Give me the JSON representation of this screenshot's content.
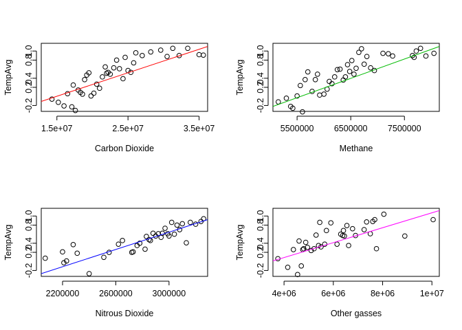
{
  "chart_data": [
    {
      "type": "scatter",
      "xlabel": "Carbon Dioxide",
      "ylabel": "TempAvg",
      "xlim": [
        12800000,
        36200000
      ],
      "ylim": [
        -0.33,
        1.17
      ],
      "xticks": [
        15000000,
        25000000,
        35000000
      ],
      "xtick_labels": [
        "1.5e+07",
        "2.5e+07",
        "3.5e+07"
      ],
      "yticks": [
        -0.2,
        0.2,
        0.4,
        0.8,
        1.0
      ],
      "ytick_labels": [
        "-0.2",
        "0.2",
        "0.4",
        "0.8",
        "1.0"
      ],
      "fit_line": {
        "color": "#ff0000",
        "x": [
          12800000,
          36200000
        ],
        "y": [
          -0.11,
          1.1
        ]
      },
      "points": {
        "x": [
          14300000,
          15200000,
          16000000,
          16500000,
          17100000,
          17300000,
          17600000,
          18000000,
          18300000,
          18600000,
          18900000,
          19200000,
          19500000,
          19800000,
          20200000,
          20600000,
          21000000,
          21400000,
          21800000,
          22000000,
          22200000,
          22500000,
          23000000,
          23400000,
          23800000,
          24300000,
          24600000,
          25000000,
          25400000,
          25800000,
          26100000,
          27000000,
          28200000,
          29600000,
          30500000,
          31300000,
          32200000,
          33400000,
          35000000,
          35600000
        ],
        "y": [
          -0.06,
          -0.13,
          -0.21,
          0.06,
          -0.23,
          0.25,
          -0.31,
          0.14,
          0.09,
          0.05,
          0.37,
          0.47,
          0.52,
          0.01,
          0.07,
          0.27,
          0.18,
          0.43,
          0.65,
          0.51,
          0.53,
          0.49,
          0.63,
          0.8,
          0.61,
          0.39,
          0.86,
          0.57,
          0.53,
          0.74,
          0.96,
          0.9,
          0.98,
          1.02,
          0.88,
          1.06,
          0.9,
          1.06,
          0.92,
          0.91
        ]
      }
    },
    {
      "type": "scatter",
      "xlabel": "Methane",
      "ylabel": "TempAvg",
      "xlim": [
        5050000,
        8150000
      ],
      "ylim": [
        -0.33,
        1.17
      ],
      "xticks": [
        5500000,
        6500000,
        7500000
      ],
      "xtick_labels": [
        "5500000",
        "6500000",
        "7500000"
      ],
      "yticks": [
        -0.2,
        0.2,
        0.4,
        0.8,
        1.0
      ],
      "ytick_labels": [
        "-0.2",
        "0.2",
        "0.4",
        "0.8",
        "1.0"
      ],
      "fit_line": {
        "color": "#00bb00",
        "x": [
          5050000,
          8150000
        ],
        "y": [
          -0.22,
          1.1
        ]
      },
      "points": {
        "x": [
          5150000,
          5300000,
          5380000,
          5420000,
          5500000,
          5560000,
          5600000,
          5650000,
          5700000,
          5780000,
          5840000,
          5880000,
          5920000,
          6000000,
          6060000,
          6100000,
          6150000,
          6200000,
          6250000,
          6300000,
          6360000,
          6400000,
          6440000,
          6480000,
          6520000,
          6560000,
          6600000,
          6650000,
          6700000,
          6750000,
          6800000,
          6870000,
          6940000,
          7100000,
          7200000,
          7280000,
          7650000,
          7680000,
          7720000,
          7800000,
          7900000,
          8050000
        ],
        "y": [
          -0.12,
          -0.04,
          -0.22,
          -0.26,
          0.01,
          0.24,
          -0.34,
          0.37,
          0.54,
          0.11,
          0.37,
          0.49,
          0.03,
          0.05,
          0.16,
          0.33,
          0.28,
          0.43,
          0.59,
          0.6,
          0.36,
          0.43,
          0.7,
          0.55,
          0.79,
          0.49,
          0.62,
          0.97,
          1.05,
          0.71,
          0.88,
          0.63,
          0.57,
          0.95,
          0.94,
          0.89,
          0.9,
          0.86,
          1.0,
          1.06,
          0.89,
          0.95
        ]
      }
    },
    {
      "type": "scatter",
      "xlabel": "Nitrous Dioxide",
      "ylabel": "TempAvg",
      "xlim": [
        2040000,
        3290000
      ],
      "ylim": [
        -0.33,
        1.17
      ],
      "xticks": [
        2200000,
        2600000,
        3000000
      ],
      "xtick_labels": [
        "2200000",
        "2600000",
        "3000000"
      ],
      "yticks": [
        -0.2,
        0.2,
        0.4,
        0.8,
        1.0
      ],
      "ytick_labels": [
        "-0.2",
        "0.2",
        "0.4",
        "0.8",
        "1.0"
      ],
      "fit_line": {
        "color": "#0000ff",
        "x": [
          2040000,
          3290000
        ],
        "y": [
          -0.27,
          0.92
        ]
      },
      "points": {
        "x": [
          2070000,
          2200000,
          2210000,
          2230000,
          2280000,
          2310000,
          2400000,
          2510000,
          2550000,
          2620000,
          2650000,
          2720000,
          2730000,
          2760000,
          2780000,
          2820000,
          2830000,
          2850000,
          2860000,
          2880000,
          2900000,
          2920000,
          2940000,
          2950000,
          2970000,
          2990000,
          3000000,
          3020000,
          3040000,
          3060000,
          3080000,
          3100000,
          3130000,
          3160000,
          3200000,
          3240000,
          3260000
        ],
        "y": [
          0.07,
          0.21,
          -0.03,
          0.01,
          0.37,
          0.18,
          -0.27,
          0.09,
          0.2,
          0.38,
          0.46,
          0.2,
          0.21,
          0.35,
          0.4,
          0.27,
          0.55,
          0.48,
          0.46,
          0.62,
          0.56,
          0.61,
          0.53,
          0.62,
          0.73,
          0.61,
          0.56,
          0.86,
          0.6,
          0.8,
          0.7,
          0.83,
          0.41,
          0.86,
          0.82,
          0.88,
          0.94
        ]
      }
    },
    {
      "type": "scatter",
      "xlabel": "Other gasses",
      "ylabel": "TempAvg",
      "xlim": [
        3550000,
        10300000
      ],
      "ylim": [
        -0.33,
        1.17
      ],
      "xticks": [
        4000000,
        6000000,
        8000000,
        10000000
      ],
      "xtick_labels": [
        "4e+06",
        "6e+06",
        "8e+06",
        "1e+07"
      ],
      "yticks": [
        -0.2,
        0.2,
        0.4,
        0.8,
        1.0
      ],
      "ytick_labels": [
        "-0.2",
        "0.2",
        "0.4",
        "0.8",
        "1.0"
      ],
      "fit_line": {
        "color": "#ff00ff",
        "x": [
          3550000,
          10300000
        ],
        "y": [
          0.01,
          1.12
        ]
      },
      "points": {
        "x": [
          3750000,
          4150000,
          4380000,
          4550000,
          4610000,
          4700000,
          4760000,
          4800000,
          4880000,
          4950000,
          5100000,
          5220000,
          5300000,
          5400000,
          5450000,
          5500000,
          5650000,
          5720000,
          5900000,
          6150000,
          6300000,
          6380000,
          6410000,
          6450000,
          6550000,
          6620000,
          6780000,
          6900000,
          7250000,
          7350000,
          7500000,
          7600000,
          7680000,
          7750000,
          8050000,
          8900000,
          10050000
        ],
        "y": [
          0.06,
          -0.13,
          0.26,
          -0.29,
          0.45,
          -0.1,
          0.26,
          0.28,
          0.42,
          0.31,
          0.24,
          0.28,
          0.58,
          0.35,
          0.86,
          0.32,
          0.38,
          0.68,
          0.85,
          0.38,
          0.6,
          0.57,
          0.68,
          0.56,
          0.79,
          0.35,
          0.72,
          0.57,
          0.7,
          0.87,
          0.61,
          0.88,
          0.92,
          0.28,
          1.04,
          0.56,
          0.92
        ]
      }
    }
  ]
}
